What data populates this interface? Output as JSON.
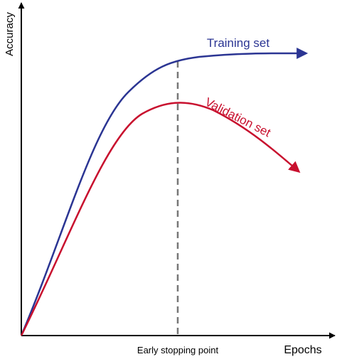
{
  "axes": {
    "y_label": "Accuracy",
    "x_label": "Epochs"
  },
  "curves": {
    "training": "Training set",
    "validation": "Validation set"
  },
  "marker": {
    "label": "Early stopping point"
  }
}
